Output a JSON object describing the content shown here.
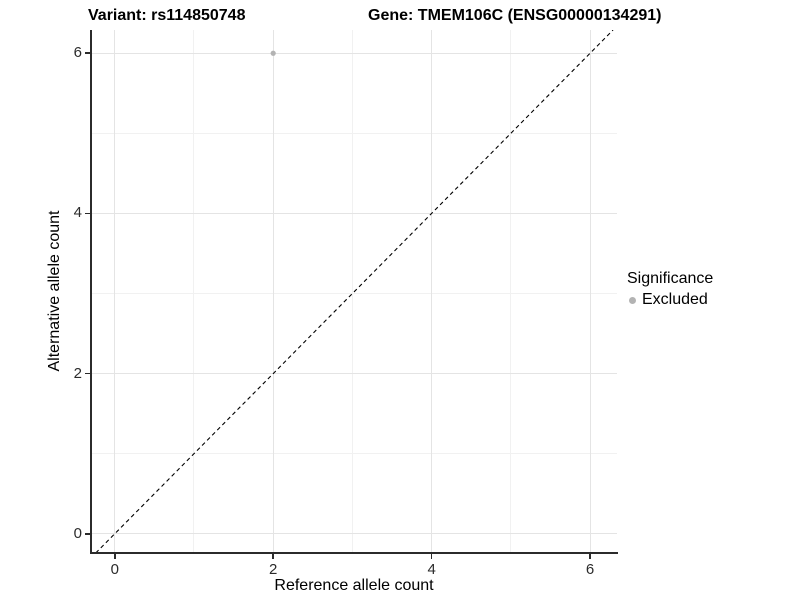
{
  "header": {
    "variant_title": "Variant: rs114850748",
    "gene_title": "Gene: TMEM106C (ENSG00000134291)"
  },
  "chart_data": {
    "type": "scatter",
    "title_left": "Variant: rs114850748",
    "title_right": "Gene: TMEM106C (ENSG00000134291)",
    "xlabel": "Reference allele count",
    "ylabel": "Alternative allele count",
    "xlim": [
      -0.3,
      6.34
    ],
    "ylim": [
      -0.24,
      6.29
    ],
    "x_ticks": [
      0,
      2,
      4,
      6
    ],
    "y_ticks": [
      0,
      2,
      4,
      6
    ],
    "x_minor_gridlines": [
      1,
      3,
      5
    ],
    "y_minor_gridlines": [
      1,
      3,
      5
    ],
    "grid": true,
    "points": [
      {
        "x": 2,
        "y": 6,
        "series": "Excluded"
      }
    ],
    "reference_line": {
      "type": "identity",
      "equation": "y = x",
      "style": "dashed",
      "color": "#000000"
    },
    "legend": {
      "title": "Significance",
      "position": "right",
      "items": [
        {
          "label": "Excluded",
          "color": "#b3b3b3"
        }
      ]
    },
    "colors": {
      "point": "#b3b3b3",
      "grid_major": "#e4e4e4",
      "grid_minor": "#f1f1f1",
      "axis": "#2b2b2b",
      "text": "#000000"
    }
  }
}
